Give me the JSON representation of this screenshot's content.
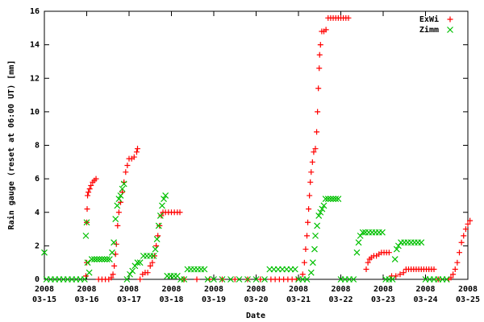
{
  "chart_data": {
    "type": "scatter",
    "ylabel": "Rain gauge (reset at 06:00 UT) [mm]",
    "xlabel": "Date",
    "xlim": [
      15,
      25
    ],
    "ylim": [
      0,
      16
    ],
    "xticks": [
      {
        "value": 15,
        "label": "2008\n03-15"
      },
      {
        "value": 16,
        "label": "2008\n03-16"
      },
      {
        "value": 17,
        "label": "2008\n03-17"
      },
      {
        "value": 18,
        "label": "2008\n03-18"
      },
      {
        "value": 19,
        "label": "2008\n03-19"
      },
      {
        "value": 20,
        "label": "2008\n03-20"
      },
      {
        "value": 21,
        "label": "2008\n03-21"
      },
      {
        "value": 22,
        "label": "2008\n03-22"
      },
      {
        "value": 23,
        "label": "2008\n03-23"
      },
      {
        "value": 24,
        "label": "2008\n03-24"
      },
      {
        "value": 25,
        "label": "2008\n03-25"
      }
    ],
    "yticks": [
      0,
      2,
      4,
      6,
      8,
      10,
      12,
      14,
      16
    ],
    "legend": "top right",
    "series": [
      {
        "name": "ExWi",
        "color": "#ff0000",
        "marker": "plus",
        "x": [
          15.98,
          16.0,
          16.0,
          16.01,
          16.02,
          16.04,
          16.07,
          16.1,
          16.14,
          16.18,
          16.22,
          16.28,
          16.36,
          16.44,
          16.52,
          16.58,
          16.62,
          16.65,
          16.68,
          16.7,
          16.73,
          16.76,
          16.8,
          16.84,
          16.88,
          16.92,
          16.96,
          17.0,
          17.06,
          17.12,
          17.18,
          17.2,
          17.26,
          17.32,
          17.38,
          17.44,
          17.5,
          17.55,
          17.6,
          17.64,
          17.68,
          17.72,
          17.76,
          17.8,
          17.86,
          17.93,
          18.0,
          18.07,
          18.14,
          18.2,
          18.3,
          18.6,
          18.9,
          19.2,
          19.5,
          19.8,
          20.1,
          20.35,
          20.45,
          20.55,
          20.65,
          20.75,
          20.85,
          20.95,
          21.1,
          21.14,
          21.17,
          21.2,
          21.22,
          21.24,
          21.26,
          21.28,
          21.3,
          21.33,
          21.36,
          21.4,
          21.43,
          21.45,
          21.47,
          21.49,
          21.5,
          21.52,
          21.55,
          21.6,
          21.65,
          21.7,
          21.76,
          21.82,
          21.88,
          21.94,
          22.0,
          22.06,
          22.12,
          22.18,
          22.6,
          22.64,
          22.68,
          22.72,
          22.78,
          22.84,
          22.9,
          22.96,
          23.02,
          23.08,
          23.14,
          23.2,
          23.3,
          23.4,
          23.48,
          23.54,
          23.6,
          23.66,
          23.72,
          23.78,
          23.84,
          23.9,
          23.96,
          24.02,
          24.08,
          24.14,
          24.2,
          24.3,
          24.55,
          24.6,
          24.65,
          24.7,
          24.75,
          24.8,
          24.85,
          24.9,
          24.95,
          25.0,
          25.05
        ],
        "values": [
          0.2,
          1.0,
          3.4,
          4.2,
          5.0,
          5.2,
          5.4,
          5.6,
          5.8,
          5.9,
          6.0,
          0,
          0,
          0,
          0,
          0.1,
          0.3,
          0.8,
          1.5,
          2.1,
          3.2,
          4.0,
          4.6,
          5.2,
          5.8,
          6.4,
          6.8,
          7.2,
          7.2,
          7.3,
          7.6,
          7.8,
          0,
          0.3,
          0.4,
          0.4,
          0.8,
          1.0,
          1.4,
          2.0,
          2.6,
          3.2,
          3.8,
          4.0,
          4.0,
          4.0,
          4.0,
          4.0,
          4.0,
          4.0,
          0,
          0,
          0,
          0,
          0,
          0,
          0,
          0,
          0,
          0,
          0,
          0,
          0,
          0,
          0.3,
          1.0,
          1.8,
          2.6,
          3.4,
          4.2,
          5.0,
          5.8,
          6.4,
          7.0,
          7.6,
          7.8,
          8.8,
          10.0,
          11.4,
          12.6,
          13.4,
          14.0,
          14.8,
          14.8,
          14.9,
          15.6,
          15.6,
          15.6,
          15.6,
          15.6,
          15.6,
          15.6,
          15.6,
          15.6,
          0.6,
          1.0,
          1.2,
          1.3,
          1.4,
          1.4,
          1.5,
          1.6,
          1.6,
          1.6,
          1.6,
          0.2,
          0.2,
          0.3,
          0.4,
          0.6,
          0.6,
          0.6,
          0.6,
          0.6,
          0.6,
          0.6,
          0.6,
          0.6,
          0.6,
          0.6,
          0.6,
          0,
          0,
          0.1,
          0.3,
          0.6,
          1.0,
          1.6,
          2.2,
          2.6,
          3.0,
          3.3,
          3.5
        ]
      },
      {
        "name": "Zimm",
        "color": "#00c000",
        "marker": "cross",
        "x": [
          15.0,
          15.05,
          15.15,
          15.25,
          15.35,
          15.45,
          15.55,
          15.65,
          15.75,
          15.85,
          15.95,
          15.98,
          16.0,
          16.02,
          16.06,
          16.12,
          16.18,
          16.24,
          16.3,
          16.36,
          16.42,
          16.48,
          16.54,
          16.6,
          16.64,
          16.68,
          16.72,
          16.76,
          16.8,
          16.84,
          16.88,
          16.95,
          17.02,
          17.08,
          17.14,
          17.2,
          17.26,
          17.34,
          17.42,
          17.5,
          17.58,
          17.62,
          17.66,
          17.7,
          17.74,
          17.78,
          17.82,
          17.86,
          17.9,
          17.98,
          18.06,
          18.14,
          18.22,
          18.3,
          18.38,
          18.46,
          18.54,
          18.62,
          18.7,
          18.78,
          18.86,
          19.0,
          19.2,
          19.4,
          19.6,
          19.8,
          20.0,
          20.2,
          20.32,
          20.42,
          20.52,
          20.62,
          20.72,
          20.82,
          20.92,
          21.0,
          21.1,
          21.2,
          21.3,
          21.34,
          21.38,
          21.4,
          21.44,
          21.48,
          21.52,
          21.56,
          21.6,
          21.64,
          21.7,
          21.76,
          21.82,
          21.88,
          21.94,
          22.0,
          22.1,
          22.2,
          22.3,
          22.38,
          22.42,
          22.46,
          22.52,
          22.58,
          22.66,
          22.74,
          22.82,
          22.9,
          22.98,
          23.06,
          23.14,
          23.22,
          23.28,
          23.32,
          23.36,
          23.42,
          23.5,
          23.58,
          23.66,
          23.74,
          23.82,
          23.9,
          24.0,
          24.1,
          24.2,
          24.3,
          24.4,
          24.5
        ],
        "values": [
          1.6,
          0,
          0,
          0,
          0,
          0,
          0,
          0,
          0,
          0,
          0,
          2.6,
          3.4,
          1.0,
          0.4,
          1.2,
          1.2,
          1.2,
          1.2,
          1.2,
          1.2,
          1.2,
          1.2,
          1.6,
          2.2,
          3.6,
          4.4,
          4.8,
          5.0,
          5.4,
          5.7,
          0,
          0.3,
          0.5,
          0.8,
          1.0,
          1.0,
          1.4,
          1.4,
          1.4,
          1.4,
          1.8,
          2.4,
          3.2,
          3.8,
          4.4,
          4.8,
          5.0,
          0.2,
          0.2,
          0.2,
          0.2,
          0,
          0,
          0.6,
          0.6,
          0.6,
          0.6,
          0.6,
          0.6,
          0,
          0,
          0,
          0,
          0,
          0,
          0,
          0,
          0.6,
          0.6,
          0.6,
          0.6,
          0.6,
          0.6,
          0.6,
          0,
          0,
          0,
          0.4,
          1.0,
          1.8,
          2.6,
          3.2,
          3.8,
          4.0,
          4.2,
          4.4,
          4.8,
          4.8,
          4.8,
          4.8,
          4.8,
          4.8,
          0,
          0,
          0,
          0,
          1.6,
          2.2,
          2.6,
          2.8,
          2.8,
          2.8,
          2.8,
          2.8,
          2.8,
          2.8,
          0,
          0,
          0,
          1.2,
          1.8,
          2.0,
          2.2,
          2.2,
          2.2,
          2.2,
          2.2,
          2.2,
          2.2,
          0,
          0,
          0,
          0,
          0,
          0
        ]
      }
    ]
  }
}
